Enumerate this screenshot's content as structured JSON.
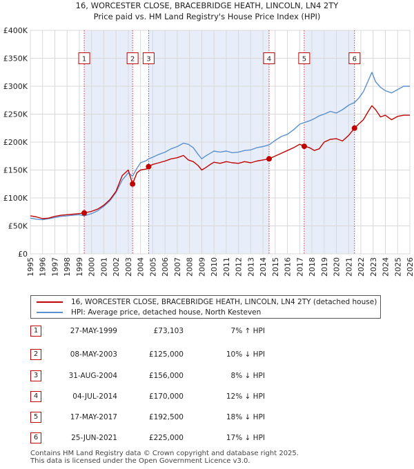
{
  "chart_data": {
    "type": "line",
    "title": "16, WORCESTER CLOSE, BRACEBRIDGE HEATH, LINCOLN, LN4 2TY",
    "subtitle": "Price paid vs. HM Land Registry's House Price Index (HPI)",
    "xlim": [
      1995,
      2026
    ],
    "ylim": [
      0,
      400000
    ],
    "y_ticks": [
      0,
      50000,
      100000,
      150000,
      200000,
      250000,
      300000,
      350000,
      400000
    ],
    "y_tick_labels": [
      "£0",
      "£50K",
      "£100K",
      "£150K",
      "£200K",
      "£250K",
      "£300K",
      "£350K",
      "£400K"
    ],
    "x_ticks": [
      1995,
      1996,
      1997,
      1998,
      1999,
      2000,
      2001,
      2002,
      2003,
      2004,
      2005,
      2006,
      2007,
      2008,
      2009,
      2010,
      2011,
      2012,
      2013,
      2014,
      2015,
      2016,
      2017,
      2018,
      2019,
      2020,
      2021,
      2022,
      2023,
      2024,
      2025,
      2026
    ],
    "x_tick_labels": [
      "1995",
      "1996",
      "1997",
      "1998",
      "1999",
      "2000",
      "2001",
      "2002",
      "2003",
      "2004",
      "2005",
      "2006",
      "2007",
      "2008",
      "2009",
      "2010",
      "2011",
      "2012",
      "2013",
      "2014",
      "2015",
      "2016",
      "2017",
      "2018",
      "2019",
      "2020",
      "2021",
      "2022",
      "2023",
      "2024",
      "2025",
      "2026"
    ],
    "series": [
      {
        "name": "16, WORCESTER CLOSE, BRACEBRIDGE HEATH, LINCOLN, LN4 2TY (detached house)",
        "color": "#c00000",
        "x": [
          1995.0,
          1995.5,
          1996.0,
          1996.5,
          1997.0,
          1997.5,
          1998.0,
          1998.5,
          1999.0,
          1999.4,
          2000.0,
          2000.5,
          2001.0,
          2001.5,
          2002.0,
          2002.5,
          2003.0,
          2003.35,
          2003.7,
          2004.0,
          2004.5,
          2004.66,
          2005.0,
          2005.5,
          2006.0,
          2006.5,
          2007.0,
          2007.5,
          2007.9,
          2008.3,
          2008.7,
          2009.0,
          2009.3,
          2009.7,
          2010.0,
          2010.5,
          2011.0,
          2011.5,
          2012.0,
          2012.5,
          2013.0,
          2013.5,
          2014.0,
          2014.5,
          2015.0,
          2015.5,
          2016.0,
          2016.5,
          2017.0,
          2017.37,
          2017.8,
          2018.2,
          2018.6,
          2019.0,
          2019.5,
          2020.0,
          2020.5,
          2021.0,
          2021.48,
          2021.8,
          2022.2,
          2022.6,
          2022.9,
          2023.2,
          2023.6,
          2024.0,
          2024.5,
          2025.0,
          2025.5,
          2026.0
        ],
        "values": [
          68000,
          66000,
          63000,
          64000,
          67000,
          69000,
          70000,
          71000,
          72000,
          73103,
          76000,
          80000,
          87000,
          97000,
          112000,
          140000,
          150000,
          125000,
          145000,
          150000,
          152000,
          156000,
          160000,
          163000,
          166000,
          170000,
          172000,
          176000,
          168000,
          165000,
          158000,
          150000,
          154000,
          160000,
          164000,
          162000,
          165000,
          163000,
          162000,
          165000,
          163000,
          166000,
          168000,
          170000,
          175000,
          180000,
          185000,
          190000,
          196000,
          192500,
          190000,
          185000,
          188000,
          200000,
          205000,
          206000,
          202000,
          212000,
          225000,
          232000,
          240000,
          255000,
          265000,
          258000,
          245000,
          248000,
          240000,
          246000,
          248000,
          248000
        ]
      },
      {
        "name": "HPI: Average price, detached house, North Kesteven",
        "color": "#5a8fd0",
        "x": [
          1995.0,
          1995.5,
          1996.0,
          1996.5,
          1997.0,
          1997.5,
          1998.0,
          1998.5,
          1999.0,
          1999.4,
          2000.0,
          2000.5,
          2001.0,
          2001.5,
          2002.0,
          2002.5,
          2003.0,
          2003.35,
          2003.7,
          2004.0,
          2004.5,
          2004.66,
          2005.0,
          2005.5,
          2006.0,
          2006.5,
          2007.0,
          2007.5,
          2007.9,
          2008.3,
          2008.7,
          2009.0,
          2009.3,
          2009.7,
          2010.0,
          2010.5,
          2011.0,
          2011.5,
          2012.0,
          2012.5,
          2013.0,
          2013.5,
          2014.0,
          2014.5,
          2015.0,
          2015.5,
          2016.0,
          2016.5,
          2017.0,
          2017.37,
          2017.8,
          2018.2,
          2018.6,
          2019.0,
          2019.5,
          2020.0,
          2020.5,
          2021.0,
          2021.48,
          2021.8,
          2022.2,
          2022.6,
          2022.9,
          2023.2,
          2023.6,
          2024.0,
          2024.5,
          2025.0,
          2025.5,
          2026.0
        ],
        "values": [
          64000,
          62000,
          61000,
          63000,
          65000,
          67000,
          68000,
          69000,
          70000,
          68000,
          72000,
          77000,
          85000,
          95000,
          110000,
          132000,
          145000,
          139000,
          153000,
          163000,
          167000,
          170000,
          173000,
          178000,
          182000,
          188000,
          192000,
          198000,
          196000,
          190000,
          178000,
          170000,
          175000,
          180000,
          184000,
          182000,
          184000,
          181000,
          182000,
          185000,
          186000,
          190000,
          192000,
          195000,
          203000,
          210000,
          214000,
          222000,
          232000,
          235000,
          238000,
          242000,
          247000,
          250000,
          255000,
          252000,
          258000,
          266000,
          271000,
          278000,
          290000,
          310000,
          325000,
          308000,
          298000,
          292000,
          288000,
          294000,
          300000,
          300000
        ]
      }
    ],
    "sales": [
      {
        "label": "1",
        "date_value": 1999.4,
        "price": 73103
      },
      {
        "label": "2",
        "date_value": 2003.35,
        "price": 125000
      },
      {
        "label": "3",
        "date_value": 2004.66,
        "price": 156000
      },
      {
        "label": "4",
        "date_value": 2014.5,
        "price": 170000
      },
      {
        "label": "5",
        "date_value": 2017.37,
        "price": 192500
      },
      {
        "label": "6",
        "date_value": 2021.48,
        "price": 225000
      }
    ],
    "marker_label_value": 350000,
    "grid": true
  },
  "legend": {
    "property_label": "16, WORCESTER CLOSE, BRACEBRIDGE HEATH, LINCOLN, LN4 2TY (detached house)",
    "hpi_label": "HPI: Average price, detached house, North Kesteven",
    "property_color": "#c00000",
    "hpi_color": "#5a8fd0"
  },
  "sales_table": [
    {
      "num": "1",
      "date": "27-MAY-1999",
      "price": "£73,103",
      "hpi": "7% ↑ HPI"
    },
    {
      "num": "2",
      "date": "08-MAY-2003",
      "price": "£125,000",
      "hpi": "10% ↓ HPI"
    },
    {
      "num": "3",
      "date": "31-AUG-2004",
      "price": "£156,000",
      "hpi": "8% ↓ HPI"
    },
    {
      "num": "4",
      "date": "04-JUL-2014",
      "price": "£170,000",
      "hpi": "12% ↓ HPI"
    },
    {
      "num": "5",
      "date": "17-MAY-2017",
      "price": "£192,500",
      "hpi": "18% ↓ HPI"
    },
    {
      "num": "6",
      "date": "25-JUN-2021",
      "price": "£225,000",
      "hpi": "17% ↓ HPI"
    }
  ],
  "footer": {
    "line1": "Contains HM Land Registry data © Crown copyright and database right 2025.",
    "line2": "This data is licensed under the Open Government Licence v3.0."
  },
  "colors": {
    "shade": "#e8eef9",
    "grid": "#d8d8d8",
    "vline": "#c00000"
  }
}
